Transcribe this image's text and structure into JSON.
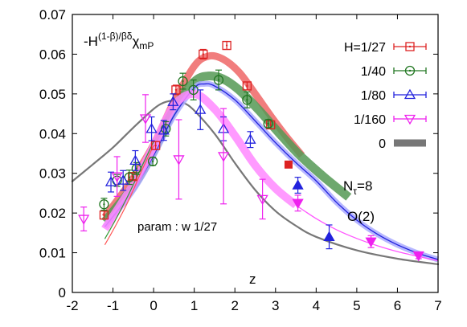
{
  "chart_data": {
    "type": "scatter",
    "title": "",
    "xlabel": "z",
    "ylabel": "",
    "xlim": [
      -2,
      7
    ],
    "ylim": [
      0,
      0.07
    ],
    "xticks": [
      "-2",
      "-1",
      "0",
      "1",
      "2",
      "3",
      "4",
      "5",
      "6",
      "7"
    ],
    "xtick_values": [
      -2,
      -1,
      0,
      1,
      2,
      3,
      4,
      5,
      6,
      7
    ],
    "yticks": [
      "0",
      "0.01",
      "0.02",
      "0.03",
      "0.04",
      "0.05",
      "0.06",
      "0.07"
    ],
    "ytick_values": [
      0,
      0.01,
      0.02,
      0.03,
      0.04,
      0.05,
      0.06,
      0.07
    ],
    "grid": false,
    "legend_position": "top-right",
    "annotations": {
      "ylabel_prefix": "-H",
      "ylabel_sup": "(1-β)/βδ",
      "ylabel_main": "χ",
      "ylabel_sub": "mP",
      "nt_main": "N",
      "nt_sub": "τ",
      "nt_rest": "=8",
      "o2": "O(2)",
      "param": "param : w 1/27"
    },
    "series": [
      {
        "name": "H=1/27",
        "color": "#dd2222",
        "marker": "square-dot",
        "x": [
          -1.22,
          -0.52,
          0.05,
          0.55,
          1.22,
          1.8,
          2.3,
          2.88
        ],
        "y": [
          0.0195,
          0.0292,
          0.037,
          0.051,
          0.06,
          0.0622,
          0.052,
          0.0422
        ],
        "err": [
          0.001,
          0.0008,
          0.001,
          0.0012,
          0.0012,
          0.001,
          0.001,
          0.001
        ]
      },
      {
        "name": "1/40",
        "color": "#227722",
        "marker": "circle-dot",
        "x": [
          -1.22,
          -0.9,
          -0.6,
          -0.42,
          -0.02,
          0.3,
          0.72,
          0.98,
          1.6,
          2.3,
          2.82
        ],
        "y": [
          0.0222,
          0.0282,
          0.029,
          0.0312,
          0.033,
          0.0412,
          0.0532,
          0.051,
          0.0535,
          0.0485,
          0.0425
        ],
        "err": [
          0.0015,
          0.0015,
          0.0018,
          0.0015,
          0.001,
          0.0018,
          0.002,
          0.0025,
          0.0025,
          0.002,
          0.001
        ]
      },
      {
        "name": "1/80",
        "color": "#2222dd",
        "marker": "triangle-up",
        "x": [
          -1.05,
          -0.75,
          -0.45,
          -0.05,
          0.25,
          0.48,
          1.15,
          1.72,
          2.38,
          3.55,
          4.32
        ],
        "y": [
          0.0278,
          0.0282,
          0.0332,
          0.0412,
          0.0408,
          0.048,
          0.046,
          0.0412,
          0.0385,
          0.027,
          0.014
        ],
        "err": [
          0.0025,
          0.0025,
          0.0025,
          0.003,
          0.0025,
          0.002,
          0.005,
          0.003,
          0.002,
          0.002,
          0.003
        ]
      },
      {
        "name": "1/160",
        "color": "#ee22ee",
        "marker": "triangle-down",
        "x": [
          -1.72,
          -0.9,
          -0.2,
          0.62,
          1.72,
          2.68,
          3.55,
          5.35,
          6.52
        ],
        "y": [
          0.0185,
          0.0292,
          0.0438,
          0.0335,
          0.0343,
          0.0235,
          0.0225,
          0.0128,
          0.0093
        ],
        "err": [
          0.003,
          0.005,
          0.006,
          0.01,
          0.012,
          0.005,
          0.002,
          0.0015,
          0.0008
        ]
      },
      {
        "name": "0",
        "color": "#777777",
        "marker": "band",
        "x": [
          -2.0,
          -1.5,
          -1.0,
          -0.5,
          0.0,
          0.25,
          0.5,
          0.75,
          1.0,
          1.5,
          2.0,
          2.5,
          3.0,
          3.5,
          4.0,
          5.0,
          6.0,
          7.0
        ],
        "y": [
          0.028,
          0.0322,
          0.0365,
          0.0415,
          0.0462,
          0.0478,
          0.0483,
          0.0477,
          0.0458,
          0.04,
          0.0326,
          0.0258,
          0.0205,
          0.0168,
          0.014,
          0.0106,
          0.0085,
          0.0071
        ]
      }
    ],
    "curves": [
      {
        "name": "fit 1/27",
        "color": "#ee6666",
        "width": 9,
        "x": [
          -1.2,
          -0.5,
          0.0,
          0.5,
          1.0,
          1.35,
          1.7,
          2.1,
          2.5,
          2.9,
          3.3,
          3.65
        ],
        "y": [
          0.019,
          0.0288,
          0.0372,
          0.048,
          0.057,
          0.0595,
          0.0588,
          0.0555,
          0.05,
          0.0442,
          0.0388,
          0.0345
        ]
      },
      {
        "name": "fit 1/40",
        "color": "#559955",
        "width": 11,
        "x": [
          -1.2,
          -0.5,
          0.0,
          0.5,
          1.0,
          1.35,
          1.7,
          2.1,
          2.6,
          3.1,
          3.6,
          4.2,
          4.8
        ],
        "y": [
          0.0178,
          0.0268,
          0.0356,
          0.046,
          0.053,
          0.0545,
          0.0538,
          0.051,
          0.0458,
          0.04,
          0.0345,
          0.029,
          0.024
        ]
      },
      {
        "name": "fit 1/80 band",
        "color": "#aaaaff",
        "width": 7,
        "x": [
          -1.2,
          -0.5,
          0.0,
          0.5,
          1.0,
          1.25,
          1.5,
          2.0,
          2.5,
          3.0,
          3.5,
          4.0,
          4.5,
          5.0,
          5.5,
          6.0,
          6.5,
          7.0
        ],
        "y": [
          0.0165,
          0.0258,
          0.0345,
          0.0445,
          0.0515,
          0.0525,
          0.052,
          0.0485,
          0.0432,
          0.0377,
          0.0327,
          0.0281,
          0.0227,
          0.0182,
          0.0147,
          0.012,
          0.0099,
          0.0083
        ]
      },
      {
        "name": "fit 1/80 line",
        "color": "#2222dd",
        "width": 1.3,
        "x": [
          -1.2,
          -0.5,
          0.0,
          0.5,
          1.0,
          1.25,
          1.5,
          2.0,
          2.5,
          3.0,
          3.5,
          4.0,
          4.5,
          5.0,
          5.5,
          6.0,
          6.5,
          7.0
        ],
        "y": [
          0.0165,
          0.0258,
          0.0345,
          0.0445,
          0.0515,
          0.0525,
          0.052,
          0.0485,
          0.0432,
          0.0377,
          0.0327,
          0.0281,
          0.0227,
          0.0182,
          0.0147,
          0.012,
          0.0099,
          0.0083
        ]
      },
      {
        "name": "fit 1/160",
        "color": "#ff88ff",
        "width": 10,
        "x": [
          -1.2,
          -0.5,
          0.0,
          0.5,
          1.0,
          1.5,
          2.0,
          2.5,
          3.0,
          3.5
        ],
        "y": [
          0.016,
          0.0272,
          0.0368,
          0.047,
          0.05,
          0.0462,
          0.0395,
          0.032,
          0.0262,
          0.022
        ]
      },
      {
        "name": "fit 1/160 thin",
        "color": "#ff55ff",
        "width": 1.3,
        "x": [
          3.5,
          4.0,
          4.5,
          5.0,
          5.5,
          6.0,
          6.5,
          7.0
        ],
        "y": [
          0.022,
          0.0186,
          0.0158,
          0.0136,
          0.0118,
          0.0103,
          0.0091,
          0.008
        ]
      },
      {
        "name": "thin red lower",
        "color": "#ff5555",
        "width": 1.2,
        "x": [
          -1.2,
          -0.9,
          -0.6,
          -0.3,
          0.0
        ],
        "y": [
          0.012,
          0.0175,
          0.0235,
          0.0305,
          0.037
        ]
      },
      {
        "name": "thin green lower",
        "color": "#339933",
        "width": 1.2,
        "x": [
          -1.2,
          -0.9,
          -0.6,
          -0.3,
          0.0
        ],
        "y": [
          0.0135,
          0.019,
          0.025,
          0.0315,
          0.038
        ]
      }
    ]
  }
}
